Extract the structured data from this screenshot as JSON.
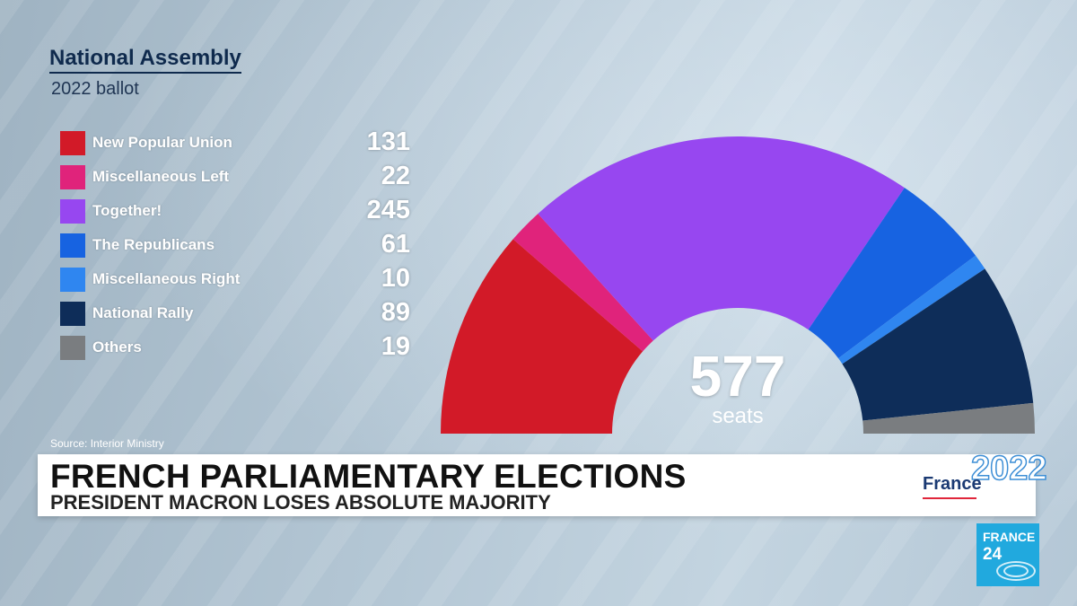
{
  "header": {
    "title": "National Assembly",
    "subtitle": "2022 ballot"
  },
  "chart_data": {
    "type": "pie",
    "title": "National Assembly",
    "subtitle": "2022 ballot",
    "shape": "hemicycle",
    "total": 577,
    "total_label": "577",
    "total_unit": "seats",
    "source": "Source: Interior Ministry",
    "categories": [
      "New Popular Union",
      "Miscellaneous Left",
      "Together!",
      "The Republicans",
      "Miscellaneous Right",
      "National Rally",
      "Others"
    ],
    "values": [
      131,
      22,
      245,
      61,
      10,
      89,
      19
    ],
    "colors": [
      "#d21a28",
      "#e0237b",
      "#9747f0",
      "#1763e1",
      "#2f86f0",
      "#0e2d59",
      "#7a7d80"
    ]
  },
  "banner": {
    "headline": "FRENCH PARLIAMENTARY ELECTIONS",
    "subline": "PRESIDENT MACRON LOSES ABSOLUTE MAJORITY"
  },
  "logos": {
    "france2022_word": "France",
    "france2022_num": "2022",
    "france24_word": "FRANCE",
    "france24_num": "24"
  }
}
